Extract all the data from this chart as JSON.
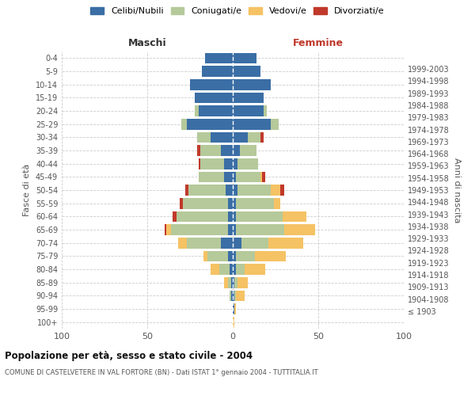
{
  "age_groups": [
    "100+",
    "95-99",
    "90-94",
    "85-89",
    "80-84",
    "75-79",
    "70-74",
    "65-69",
    "60-64",
    "55-59",
    "50-54",
    "45-49",
    "40-44",
    "35-39",
    "30-34",
    "25-29",
    "20-24",
    "15-19",
    "10-14",
    "5-9",
    "0-4"
  ],
  "birth_years": [
    "≤ 1903",
    "1904-1908",
    "1909-1913",
    "1914-1918",
    "1919-1923",
    "1924-1928",
    "1929-1933",
    "1934-1938",
    "1939-1943",
    "1944-1948",
    "1949-1953",
    "1954-1958",
    "1959-1963",
    "1964-1968",
    "1969-1973",
    "1974-1978",
    "1979-1983",
    "1984-1988",
    "1989-1993",
    "1994-1998",
    "1999-2003"
  ],
  "maschi": {
    "celibi": [
      0,
      0,
      1,
      1,
      2,
      3,
      7,
      3,
      3,
      3,
      4,
      5,
      5,
      7,
      13,
      27,
      20,
      22,
      25,
      18,
      16
    ],
    "coniugati": [
      0,
      0,
      1,
      2,
      6,
      12,
      20,
      33,
      30,
      26,
      22,
      15,
      14,
      12,
      8,
      3,
      2,
      0,
      0,
      0,
      0
    ],
    "vedovi": [
      0,
      0,
      0,
      2,
      5,
      2,
      5,
      3,
      0,
      0,
      0,
      0,
      0,
      0,
      0,
      0,
      0,
      0,
      0,
      0,
      0
    ],
    "divorziati": [
      0,
      0,
      0,
      0,
      0,
      0,
      0,
      1,
      2,
      2,
      2,
      0,
      1,
      2,
      0,
      0,
      0,
      0,
      0,
      0,
      0
    ]
  },
  "femmine": {
    "nubili": [
      0,
      1,
      1,
      1,
      2,
      2,
      5,
      2,
      2,
      2,
      3,
      2,
      3,
      4,
      9,
      22,
      18,
      18,
      22,
      16,
      14
    ],
    "coniugate": [
      0,
      0,
      1,
      2,
      5,
      11,
      16,
      28,
      27,
      22,
      19,
      14,
      12,
      10,
      7,
      5,
      2,
      0,
      0,
      0,
      0
    ],
    "vedove": [
      1,
      1,
      5,
      6,
      12,
      18,
      20,
      18,
      14,
      4,
      6,
      1,
      0,
      0,
      0,
      0,
      0,
      0,
      0,
      0,
      0
    ],
    "divorziate": [
      0,
      0,
      0,
      0,
      0,
      0,
      0,
      0,
      0,
      0,
      2,
      2,
      0,
      0,
      2,
      0,
      0,
      0,
      0,
      0,
      0
    ]
  },
  "colors": {
    "celibi": "#3a6ea5",
    "coniugati": "#b5c99a",
    "vedovi": "#f5c264",
    "divorziati": "#c0392b"
  },
  "legend_labels": [
    "Celibi/Nubili",
    "Coniugati/e",
    "Vedovi/e",
    "Divorziati/e"
  ],
  "legend_colors": [
    "#3a6ea5",
    "#b5c99a",
    "#f5c264",
    "#c0392b"
  ],
  "xlabel_left": "Maschi",
  "xlabel_right": "Femmine",
  "ylabel_left": "Fasce di età",
  "ylabel_right": "Anni di nascita",
  "title": "Popolazione per età, sesso e stato civile - 2004",
  "subtitle": "COMUNE DI CASTELVETERE IN VAL FORTORE (BN) - Dati ISTAT 1° gennaio 2004 - TUTTITALIA.IT",
  "xlim": 100,
  "bg_color": "#ffffff",
  "grid_color": "#cccccc"
}
